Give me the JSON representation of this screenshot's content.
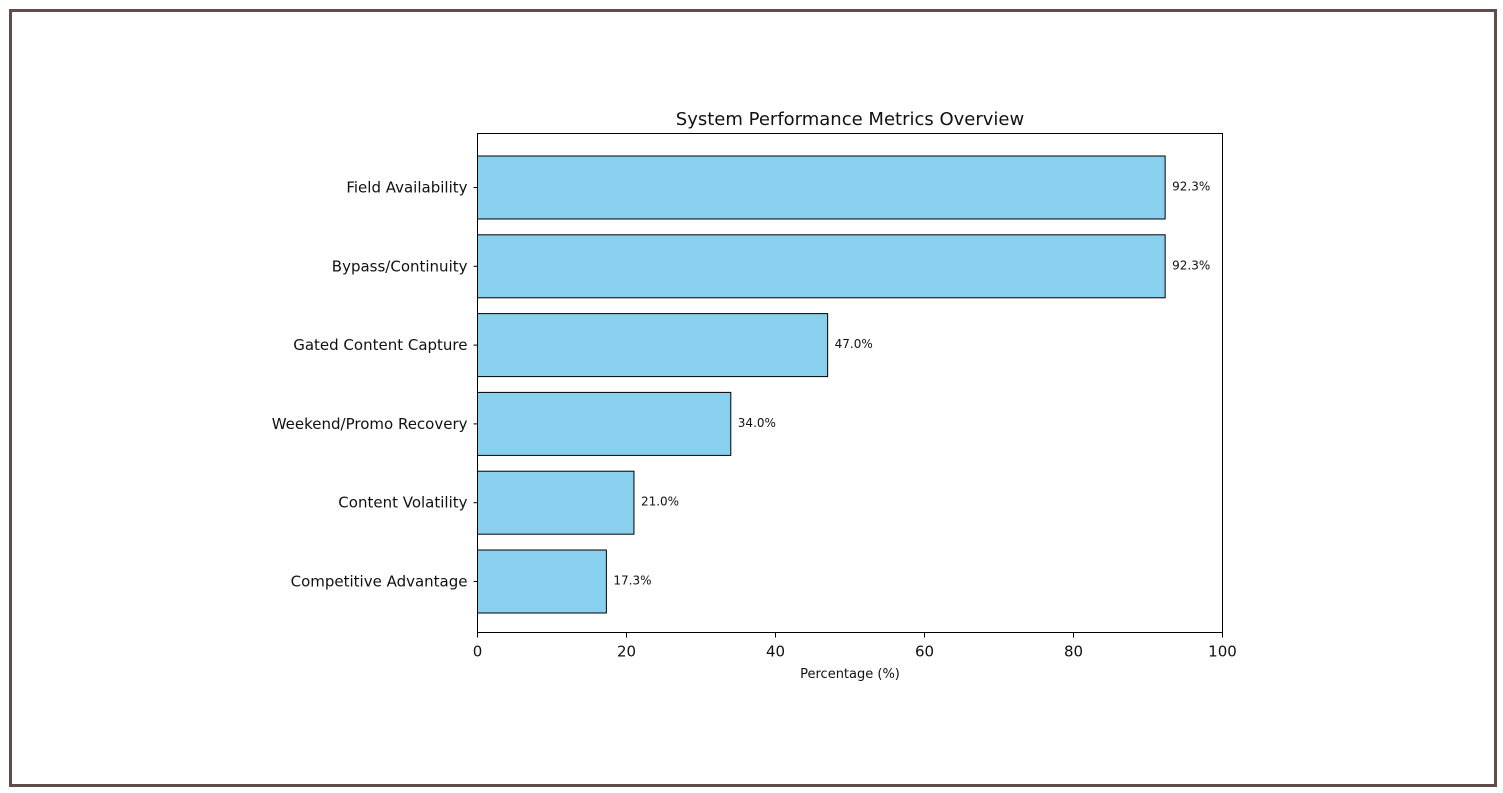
{
  "chart_data": {
    "type": "bar",
    "orientation": "horizontal",
    "title": "System Performance Metrics Overview",
    "xlabel": "Percentage (%)",
    "ylabel": "",
    "xlim": [
      0,
      100
    ],
    "xticks": [
      0,
      20,
      40,
      60,
      80,
      100
    ],
    "categories": [
      "Field Availability",
      "Bypass/Continuity",
      "Gated Content Capture",
      "Weekend/Promo Recovery",
      "Content Volatility",
      "Competitive Advantage"
    ],
    "values": [
      92.3,
      92.3,
      47.0,
      34.0,
      21.0,
      17.3
    ],
    "value_labels": [
      "92.3%",
      "92.3%",
      "47.0%",
      "34.0%",
      "21.0%",
      "17.3%"
    ],
    "bar_color": "#89cfee",
    "bar_edge_color": "#000000",
    "grid": false,
    "legend": "none"
  },
  "colors": {
    "frame_border": "#5d4e4a",
    "background": "#ffffff"
  }
}
